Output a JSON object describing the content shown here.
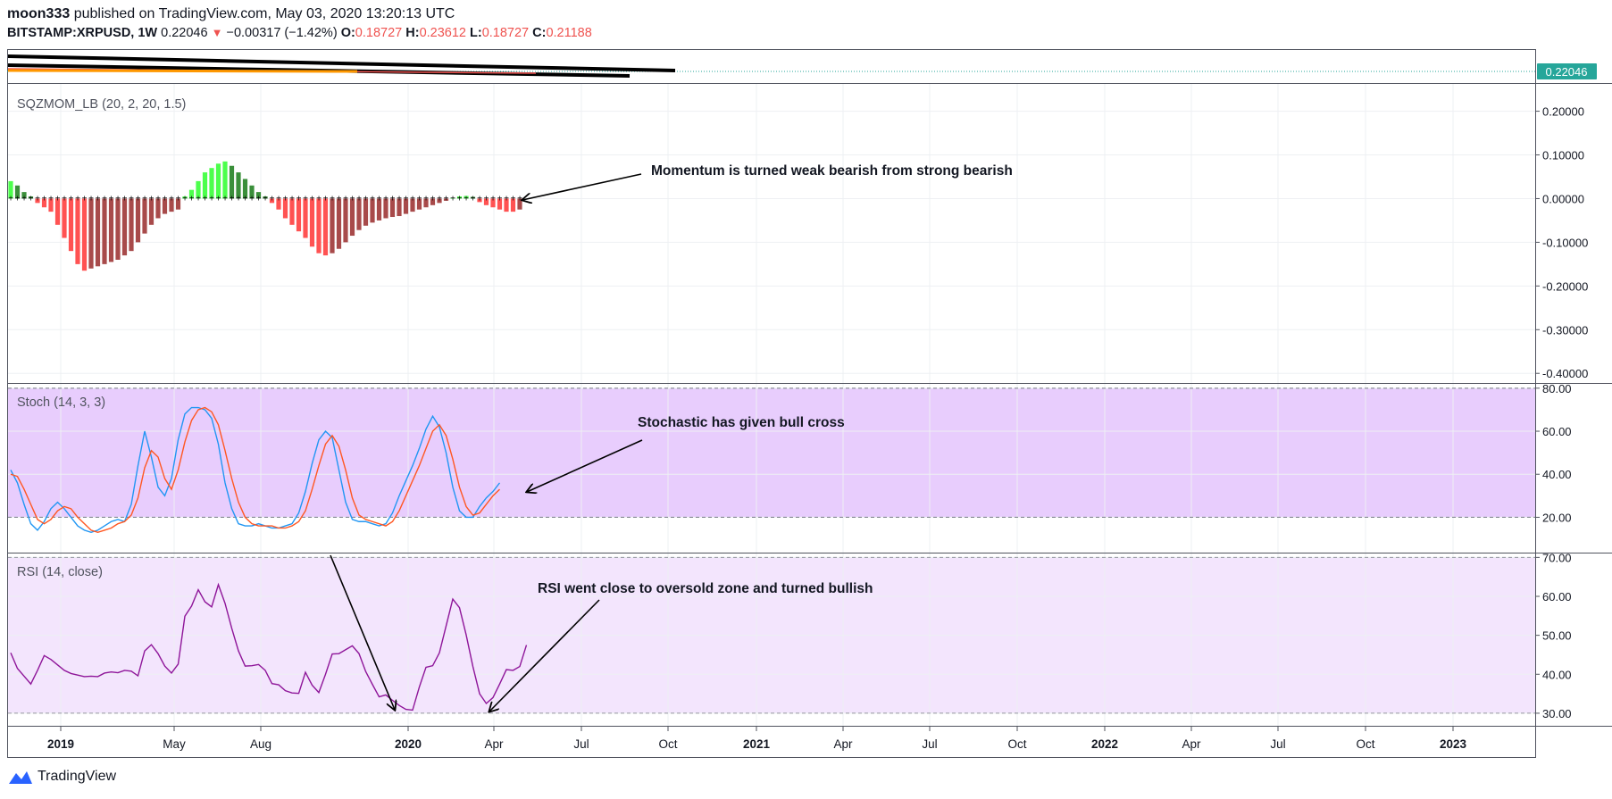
{
  "header": {
    "author": "moon333",
    "published_text": "published on TradingView.com, May 03, 2020 13:20:13 UTC",
    "symbol": "BITSTAMP:XRPUSD, 1W",
    "last": "0.22046",
    "change": "−0.00317 (−1.42%)",
    "o_label": "O:",
    "o": "0.18727",
    "h_label": "H:",
    "h": "0.23612",
    "l_label": "L:",
    "l": "0.18727",
    "c_label": "C:",
    "c": "0.21188"
  },
  "price_badge": "0.22046",
  "colors": {
    "grid": "#eef0f3",
    "green_strong": "#4cff4c",
    "green_weak": "#3a8f3a",
    "red_strong": "#ff5252",
    "red_weak": "#a84a4a",
    "stoch_k": "#2196f3",
    "stoch_d": "#ff5722",
    "rsi": "#8e1599",
    "stoch_band": "#e8cdfd",
    "rsi_band": "#f3e5fd",
    "badge": "#26a69a"
  },
  "x_axis": {
    "ticks": [
      {
        "label": "2019",
        "bold": true
      },
      {
        "label": "May",
        "bold": false
      },
      {
        "label": "Aug",
        "bold": false
      },
      {
        "label": "2020",
        "bold": true
      },
      {
        "label": "Apr",
        "bold": false
      },
      {
        "label": "Jul",
        "bold": false
      },
      {
        "label": "Oct",
        "bold": false
      },
      {
        "label": "2021",
        "bold": true
      },
      {
        "label": "Apr",
        "bold": false
      },
      {
        "label": "Jul",
        "bold": false
      },
      {
        "label": "Oct",
        "bold": false
      },
      {
        "label": "2022",
        "bold": true
      },
      {
        "label": "Apr",
        "bold": false
      },
      {
        "label": "Jul",
        "bold": false
      },
      {
        "label": "Oct",
        "bold": false
      },
      {
        "label": "2023",
        "bold": true
      }
    ]
  },
  "annotations": {
    "momentum": "Momentum is turned weak bearish from strong bearish",
    "stoch": "Stochastic has given bull cross",
    "rsi": "RSI went close to oversold zone and turned bullish"
  },
  "footer": {
    "brand": "TradingView"
  },
  "chart_data": [
    {
      "type": "bar",
      "title": "SQZMOM_LB (20, 2, 20, 1.5)",
      "y_ticks": [
        "0.20000",
        "0.10000",
        "0.00000",
        "-0.10000",
        "-0.20000",
        "-0.30000",
        "-0.40000"
      ],
      "ylim": [
        -0.42,
        0.24
      ],
      "values": [
        0.04,
        0.03,
        0.015,
        0.005,
        -0.01,
        -0.02,
        -0.03,
        -0.06,
        -0.09,
        -0.12,
        -0.15,
        -0.165,
        -0.16,
        -0.155,
        -0.15,
        -0.145,
        -0.14,
        -0.13,
        -0.12,
        -0.1,
        -0.08,
        -0.06,
        -0.045,
        -0.035,
        -0.03,
        -0.025,
        0.005,
        0.02,
        0.04,
        0.06,
        0.07,
        0.08,
        0.085,
        0.075,
        0.06,
        0.045,
        0.03,
        0.015,
        0.005,
        -0.01,
        -0.025,
        -0.045,
        -0.06,
        -0.075,
        -0.09,
        -0.11,
        -0.125,
        -0.13,
        -0.125,
        -0.115,
        -0.1,
        -0.085,
        -0.072,
        -0.062,
        -0.055,
        -0.05,
        -0.045,
        -0.042,
        -0.04,
        -0.035,
        -0.03,
        -0.025,
        -0.02,
        -0.015,
        -0.01,
        -0.005,
        0.002,
        0.005,
        0.006,
        0.004,
        -0.008,
        -0.015,
        -0.02,
        -0.025,
        -0.03,
        -0.03,
        -0.025
      ]
    },
    {
      "type": "line",
      "title": "Stoch (14, 3, 3)",
      "y_ticks": [
        "80.00",
        "60.00",
        "40.00",
        "20.00"
      ],
      "ylim": [
        4,
        82
      ],
      "band": [
        20,
        80
      ],
      "series": [
        {
          "values": [
            42,
            36,
            26,
            17,
            14,
            18,
            24,
            27,
            24,
            20,
            16,
            14,
            13,
            14,
            16,
            18,
            19,
            18,
            26,
            44,
            60,
            48,
            34,
            30,
            38,
            56,
            68,
            71,
            71,
            70,
            66,
            54,
            36,
            24,
            17,
            16,
            16,
            17,
            16,
            15,
            15,
            16,
            17,
            22,
            32,
            45,
            56,
            60,
            57,
            42,
            27,
            19,
            18,
            18,
            17,
            16,
            17,
            22,
            30,
            37,
            44,
            52,
            61,
            67,
            62,
            50,
            34,
            23,
            20,
            20,
            25,
            29,
            32,
            36
          ]
        },
        {
          "values": [
            40,
            39,
            33,
            26,
            19,
            17,
            19,
            23,
            25,
            24,
            20,
            17,
            14,
            13,
            14,
            15,
            17,
            18,
            21,
            29,
            43,
            51,
            48,
            38,
            33,
            42,
            55,
            65,
            70,
            71,
            69,
            63,
            51,
            38,
            27,
            20,
            17,
            16,
            16,
            16,
            15,
            15,
            16,
            18,
            23,
            33,
            44,
            54,
            58,
            53,
            42,
            29,
            21,
            19,
            18,
            17,
            16,
            18,
            23,
            30,
            37,
            44,
            52,
            60,
            63,
            58,
            47,
            34,
            25,
            21,
            22,
            26,
            30,
            33
          ]
        }
      ]
    },
    {
      "type": "line",
      "title": "RSI (14, close)",
      "y_ticks": [
        "70.00",
        "60.00",
        "50.00",
        "40.00",
        "30.00"
      ],
      "ylim": [
        27,
        71
      ],
      "band": [
        30,
        70
      ],
      "series": [
        {
          "values": [
            45.5,
            41.5,
            39.5,
            37.5,
            41.0,
            44.8,
            43.8,
            42.4,
            41.0,
            40.2,
            39.8,
            39.4,
            39.5,
            39.4,
            40.3,
            40.6,
            40.4,
            41.0,
            40.8,
            39.6,
            46.0,
            47.6,
            45.3,
            42.1,
            40.3,
            42.6,
            54.9,
            57.5,
            61.7,
            58.6,
            57.3,
            63.0,
            58.2,
            51.8,
            46.0,
            42.1,
            42.2,
            42.5,
            41.0,
            37.6,
            37.3,
            35.8,
            35.2,
            35.1,
            40.5,
            37.2,
            35.3,
            40.0,
            45.2,
            45.3,
            46.3,
            47.3,
            45.3,
            40.7,
            37.4,
            34.2,
            34.7,
            33.3,
            32.0,
            31.0,
            30.8,
            36.7,
            41.8,
            42.2,
            45.5,
            52.4,
            59.3,
            57.1,
            50.1,
            42.0,
            35.0,
            32.5,
            34.0,
            37.5,
            41.2,
            41.0,
            42.0,
            47.5
          ]
        }
      ]
    }
  ]
}
